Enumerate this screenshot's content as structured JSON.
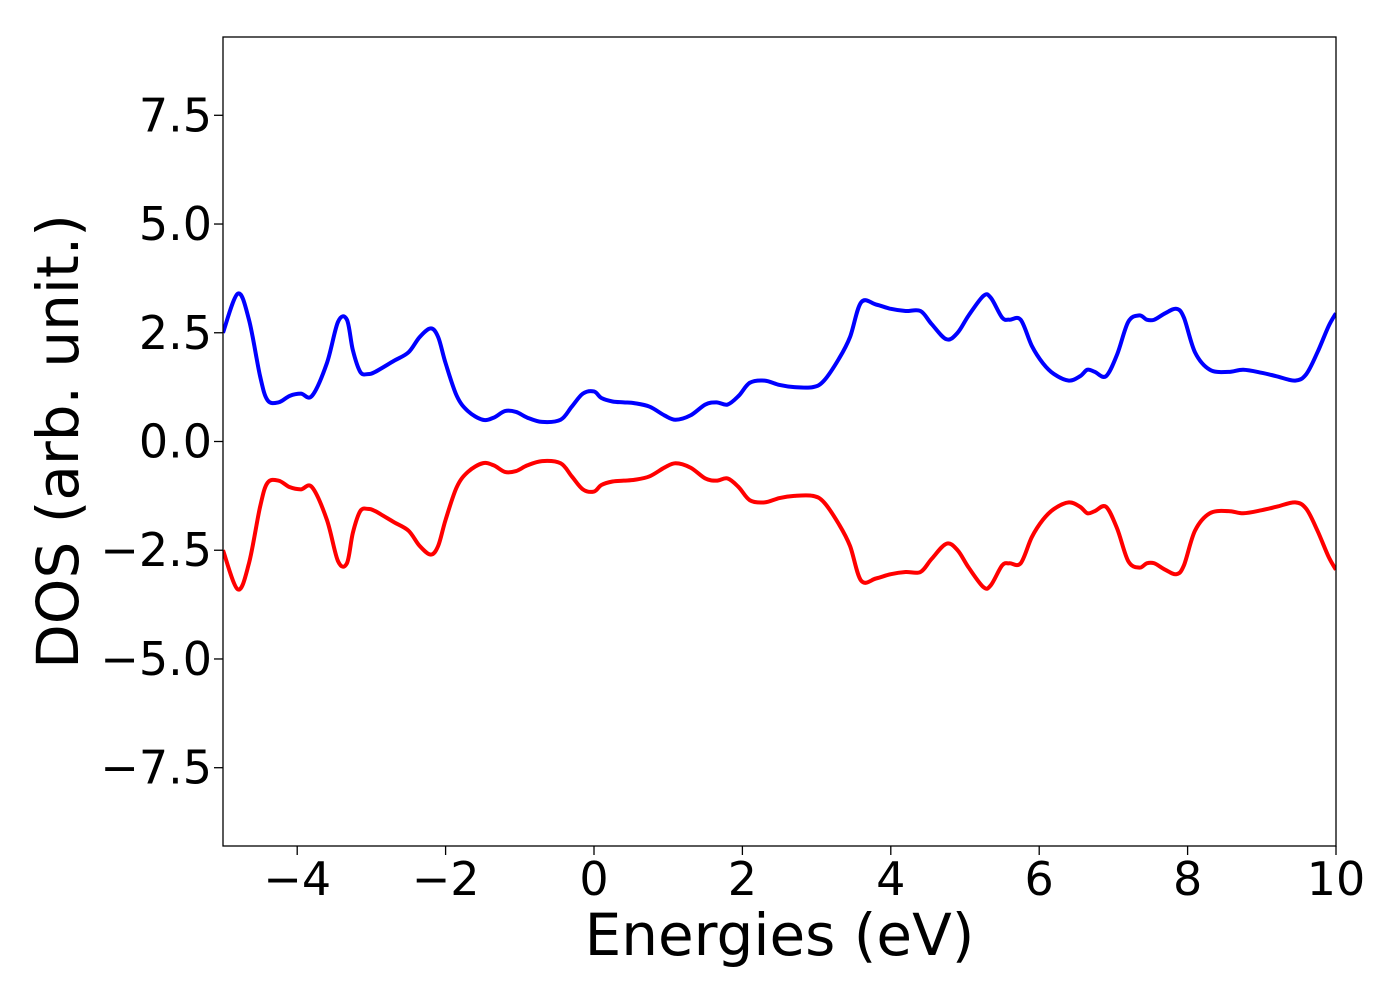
{
  "chart_data": {
    "type": "line",
    "title": "",
    "xlabel": "Energies (eV)",
    "ylabel": "DOS (arb. unit.)",
    "xlim": [
      -5,
      10
    ],
    "ylim": [
      -9.3,
      9.3
    ],
    "x_ticks": [
      -4,
      -2,
      0,
      2,
      4,
      6,
      8,
      10
    ],
    "x_tick_labels": [
      "−4",
      "−2",
      "0",
      "2",
      "4",
      "6",
      "8",
      "10"
    ],
    "y_ticks": [
      7.5,
      5.0,
      2.5,
      0.0,
      -2.5,
      -5.0,
      -7.5
    ],
    "y_tick_labels": [
      "7.5",
      "5.0",
      "2.5",
      "0.0",
      "−2.5",
      "−5.0",
      "−7.5"
    ],
    "grid": false,
    "legend": "none",
    "series": [
      {
        "color": "#0000ff",
        "x": [
          -5.0,
          -4.8,
          -4.65,
          -4.5,
          -4.4,
          -4.25,
          -4.1,
          -3.95,
          -3.8,
          -3.6,
          -3.45,
          -3.33,
          -3.25,
          -3.15,
          -3.05,
          -2.95,
          -2.7,
          -2.5,
          -2.35,
          -2.2,
          -2.1,
          -2.0,
          -1.85,
          -1.7,
          -1.5,
          -1.35,
          -1.2,
          -1.05,
          -0.9,
          -0.7,
          -0.45,
          -0.3,
          -0.15,
          0.0,
          0.1,
          0.25,
          0.4,
          0.55,
          0.75,
          0.95,
          1.1,
          1.3,
          1.5,
          1.65,
          1.8,
          1.95,
          2.1,
          2.3,
          2.5,
          2.7,
          2.95,
          3.1,
          3.3,
          3.45,
          3.6,
          3.8,
          4.0,
          4.2,
          4.4,
          4.55,
          4.75,
          4.9,
          5.05,
          5.25,
          5.35,
          5.5,
          5.6,
          5.75,
          5.9,
          6.05,
          6.2,
          6.4,
          6.55,
          6.65,
          6.75,
          6.9,
          7.05,
          7.2,
          7.35,
          7.45,
          7.55,
          7.7,
          7.85,
          7.95,
          8.1,
          8.3,
          8.55,
          8.75,
          9.0,
          9.2,
          9.45,
          9.6,
          9.75,
          9.9,
          10.0
        ],
        "y": [
          2.5,
          3.4,
          2.8,
          1.5,
          0.95,
          0.9,
          1.05,
          1.1,
          1.05,
          1.8,
          2.75,
          2.8,
          2.1,
          1.6,
          1.55,
          1.6,
          1.85,
          2.05,
          2.4,
          2.6,
          2.4,
          1.8,
          1.05,
          0.7,
          0.5,
          0.55,
          0.7,
          0.68,
          0.55,
          0.45,
          0.5,
          0.8,
          1.1,
          1.15,
          1.0,
          0.92,
          0.9,
          0.88,
          0.8,
          0.6,
          0.5,
          0.6,
          0.85,
          0.9,
          0.85,
          1.05,
          1.35,
          1.4,
          1.3,
          1.25,
          1.25,
          1.4,
          1.9,
          2.4,
          3.2,
          3.15,
          3.05,
          3.0,
          3.0,
          2.7,
          2.35,
          2.5,
          2.9,
          3.35,
          3.3,
          2.85,
          2.8,
          2.8,
          2.2,
          1.8,
          1.55,
          1.4,
          1.5,
          1.65,
          1.6,
          1.5,
          2.0,
          2.75,
          2.9,
          2.8,
          2.8,
          2.95,
          3.05,
          2.85,
          2.05,
          1.65,
          1.6,
          1.65,
          1.58,
          1.5,
          1.4,
          1.55,
          2.05,
          2.65,
          2.95
        ]
      },
      {
        "color": "#ff0000",
        "x": [
          -5.0,
          -4.8,
          -4.65,
          -4.5,
          -4.4,
          -4.25,
          -4.1,
          -3.95,
          -3.8,
          -3.6,
          -3.45,
          -3.33,
          -3.25,
          -3.15,
          -3.05,
          -2.95,
          -2.7,
          -2.5,
          -2.35,
          -2.2,
          -2.1,
          -2.0,
          -1.85,
          -1.7,
          -1.5,
          -1.35,
          -1.2,
          -1.05,
          -0.9,
          -0.7,
          -0.45,
          -0.3,
          -0.15,
          0.0,
          0.1,
          0.25,
          0.4,
          0.55,
          0.75,
          0.95,
          1.1,
          1.3,
          1.5,
          1.65,
          1.8,
          1.95,
          2.1,
          2.3,
          2.5,
          2.7,
          2.95,
          3.1,
          3.3,
          3.45,
          3.6,
          3.8,
          4.0,
          4.2,
          4.4,
          4.55,
          4.75,
          4.9,
          5.05,
          5.25,
          5.35,
          5.5,
          5.6,
          5.75,
          5.9,
          6.05,
          6.2,
          6.4,
          6.55,
          6.65,
          6.75,
          6.9,
          7.05,
          7.2,
          7.35,
          7.45,
          7.55,
          7.7,
          7.85,
          7.95,
          8.1,
          8.3,
          8.55,
          8.75,
          9.0,
          9.2,
          9.45,
          9.6,
          9.75,
          9.9,
          10.0
        ],
        "y": [
          -2.5,
          -3.4,
          -2.8,
          -1.5,
          -0.95,
          -0.9,
          -1.05,
          -1.1,
          -1.05,
          -1.8,
          -2.75,
          -2.8,
          -2.1,
          -1.6,
          -1.55,
          -1.6,
          -1.85,
          -2.05,
          -2.4,
          -2.6,
          -2.4,
          -1.8,
          -1.05,
          -0.7,
          -0.5,
          -0.55,
          -0.7,
          -0.68,
          -0.55,
          -0.45,
          -0.5,
          -0.8,
          -1.1,
          -1.15,
          -1.0,
          -0.92,
          -0.9,
          -0.88,
          -0.8,
          -0.6,
          -0.5,
          -0.6,
          -0.85,
          -0.9,
          -0.85,
          -1.05,
          -1.35,
          -1.4,
          -1.3,
          -1.25,
          -1.25,
          -1.4,
          -1.9,
          -2.4,
          -3.2,
          -3.15,
          -3.05,
          -3.0,
          -3.0,
          -2.7,
          -2.35,
          -2.5,
          -2.9,
          -3.35,
          -3.3,
          -2.85,
          -2.8,
          -2.8,
          -2.2,
          -1.8,
          -1.55,
          -1.4,
          -1.5,
          -1.65,
          -1.6,
          -1.5,
          -2.0,
          -2.75,
          -2.9,
          -2.8,
          -2.8,
          -2.95,
          -3.05,
          -2.85,
          -2.05,
          -1.65,
          -1.6,
          -1.65,
          -1.58,
          -1.5,
          -1.4,
          -1.55,
          -2.05,
          -2.65,
          -2.95
        ]
      }
    ]
  }
}
